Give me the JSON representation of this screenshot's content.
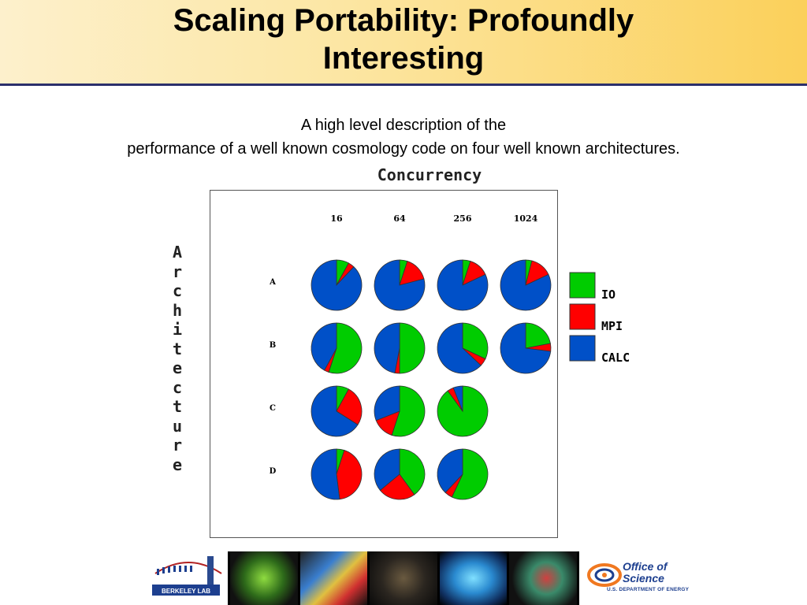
{
  "slide": {
    "title_line1": "Scaling Portability: Profoundly",
    "title_line2": "Interesting",
    "subtitle_line1": "A high level description of the",
    "subtitle_line2": "performance of a well known cosmology code on four well known architectures."
  },
  "footer": {
    "berkeley_label": "BERKELEY LAB",
    "science_line1": "Office of",
    "science_line2": "Science",
    "science_dept": "U.S. DEPARTMENT OF ENERGY"
  },
  "chart_data": {
    "type": "pie",
    "title": "Concurrency",
    "xlabel": "Concurrency",
    "ylabel": "Architecture",
    "columns": [
      "16",
      "64",
      "256",
      "1024"
    ],
    "rows": [
      "A",
      "B",
      "C",
      "D"
    ],
    "legend": [
      {
        "name": "IO",
        "color": "#00cc00"
      },
      {
        "name": "MPI",
        "color": "#ff0000"
      },
      {
        "name": "CALC",
        "color": "#0050c8"
      }
    ],
    "legend_position": "right",
    "cells": [
      {
        "row": "A",
        "col": "16",
        "IO": 0.08,
        "MPI": 0.04,
        "CALC": 0.88
      },
      {
        "row": "A",
        "col": "64",
        "IO": 0.05,
        "MPI": 0.16,
        "CALC": 0.79
      },
      {
        "row": "A",
        "col": "256",
        "IO": 0.05,
        "MPI": 0.13,
        "CALC": 0.82
      },
      {
        "row": "A",
        "col": "1024",
        "IO": 0.04,
        "MPI": 0.14,
        "CALC": 0.82
      },
      {
        "row": "B",
        "col": "16",
        "IO": 0.55,
        "MPI": 0.03,
        "CALC": 0.42
      },
      {
        "row": "B",
        "col": "64",
        "IO": 0.5,
        "MPI": 0.03,
        "CALC": 0.47
      },
      {
        "row": "B",
        "col": "256",
        "IO": 0.32,
        "MPI": 0.05,
        "CALC": 0.63
      },
      {
        "row": "B",
        "col": "1024",
        "IO": 0.22,
        "MPI": 0.05,
        "CALC": 0.73
      },
      {
        "row": "C",
        "col": "16",
        "IO": 0.08,
        "MPI": 0.26,
        "CALC": 0.66
      },
      {
        "row": "C",
        "col": "64",
        "IO": 0.55,
        "MPI": 0.14,
        "CALC": 0.31
      },
      {
        "row": "C",
        "col": "256",
        "IO": 0.9,
        "MPI": 0.04,
        "CALC": 0.06
      },
      {
        "row": "D",
        "col": "16",
        "IO": 0.05,
        "MPI": 0.43,
        "CALC": 0.52
      },
      {
        "row": "D",
        "col": "64",
        "IO": 0.4,
        "MPI": 0.24,
        "CALC": 0.36
      },
      {
        "row": "D",
        "col": "256",
        "IO": 0.57,
        "MPI": 0.05,
        "CALC": 0.38
      }
    ]
  }
}
